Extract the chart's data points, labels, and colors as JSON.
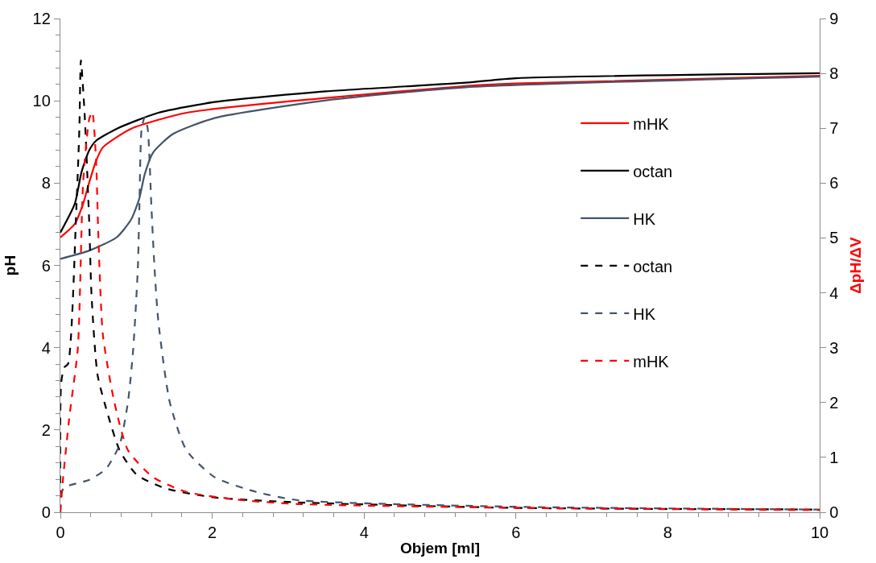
{
  "chart_data": {
    "type": "line",
    "xlabel": "Objem [ml]",
    "ylabel": "pH",
    "y2label": "ΔpH/ΔV",
    "xlim": [
      0,
      10
    ],
    "xticks": [
      0,
      2,
      4,
      6,
      8,
      10
    ],
    "ylim": [
      0,
      12
    ],
    "yticks": [
      0,
      2,
      4,
      6,
      8,
      10,
      12
    ],
    "y2lim": [
      0,
      9
    ],
    "y2ticks": [
      0,
      1,
      2,
      3,
      4,
      5,
      6,
      7,
      8,
      9
    ],
    "legend": "top right",
    "marker": "none",
    "series": [
      {
        "name": "mHK",
        "color": "#ff0000",
        "line_style": "solid",
        "x": [
          0,
          0.19,
          0.3,
          0.38,
          0.47,
          0.56,
          0.93,
          1.66,
          3.5,
          5.34,
          6,
          10
        ],
        "values": [
          6.68,
          7.01,
          7.5,
          8.02,
          8.54,
          8.87,
          9.32,
          9.71,
          10.07,
          10.36,
          10.42,
          10.61
        ]
      },
      {
        "name": "octan",
        "color": "#000000",
        "line_style": "solid",
        "x": [
          0,
          0.19,
          0.28,
          0.38,
          0.47,
          0.74,
          1.29,
          2.03,
          3.5,
          5.34,
          6,
          10
        ],
        "values": [
          6.8,
          7.5,
          8.28,
          8.8,
          9.03,
          9.32,
          9.71,
          9.97,
          10.23,
          10.44,
          10.55,
          10.67
        ]
      },
      {
        "name": "HK",
        "color": "#44546a",
        "line_style": "solid",
        "x": [
          0,
          0.38,
          0.74,
          0.93,
          1.04,
          1.11,
          1.22,
          1.48,
          2.03,
          3.5,
          5.34,
          10
        ],
        "values": [
          6.16,
          6.36,
          6.68,
          7.11,
          7.63,
          8.21,
          8.74,
          9.19,
          9.58,
          10.01,
          10.33,
          10.59
        ]
      },
      {
        "name": "octan",
        "color": "#000000",
        "line_style": "dashed",
        "axis": "y2",
        "x": [
          0,
          0.01,
          0.05,
          0.1,
          0.21,
          0.25,
          0.27,
          0.32,
          0.38,
          0.41,
          0.49,
          0.63,
          0.78,
          1.0,
          1.37,
          2.03,
          3.13,
          6,
          10
        ],
        "values": [
          0,
          2.35,
          2.64,
          2.7,
          5.53,
          7.0,
          8.24,
          7.24,
          5.28,
          3.96,
          2.5,
          1.76,
          1.13,
          0.69,
          0.44,
          0.27,
          0.18,
          0.08,
          0.05
        ]
      },
      {
        "name": "HK",
        "color": "#44546a",
        "line_style": "dashed",
        "axis": "y2",
        "x": [
          0,
          0.05,
          0.38,
          0.6,
          0.78,
          0.89,
          0.96,
          1.02,
          1.04,
          1.07,
          1.11,
          1.15,
          1.2,
          1.24,
          1.29,
          1.44,
          1.66,
          2.03,
          2.58,
          3.13,
          6,
          10
        ],
        "values": [
          0.3,
          0.45,
          0.59,
          0.79,
          1.23,
          2.01,
          2.99,
          4.45,
          5.53,
          6.99,
          7.2,
          6.99,
          5.53,
          4.45,
          3.48,
          2.01,
          1.13,
          0.64,
          0.37,
          0.22,
          0.1,
          0.05
        ]
      },
      {
        "name": "mHK",
        "color": "#ff0000",
        "line_style": "dashed",
        "axis": "y2",
        "x": [
          0,
          0.03,
          0.12,
          0.23,
          0.3,
          0.38,
          0.42,
          0.47,
          0.5,
          0.56,
          0.71,
          0.89,
          1.22,
          1.66,
          2.4,
          3.13,
          6,
          10
        ],
        "values": [
          0,
          0.54,
          1.76,
          2.99,
          6.02,
          7.17,
          7.3,
          6.41,
          5.04,
          3.23,
          2.01,
          1.13,
          0.64,
          0.37,
          0.22,
          0.15,
          0.08,
          0.04
        ]
      }
    ]
  }
}
